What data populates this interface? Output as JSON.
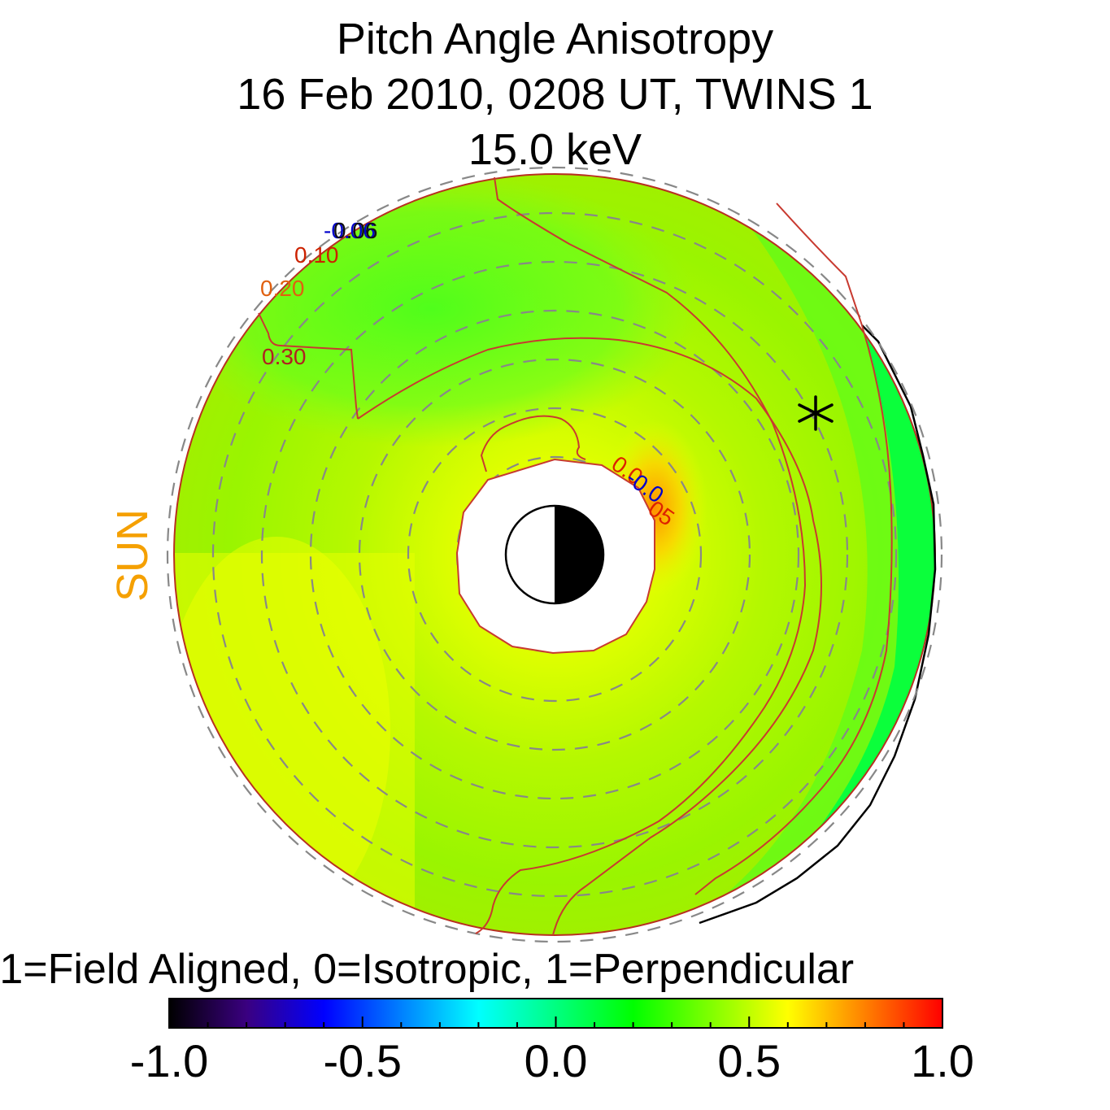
{
  "chart_data": {
    "type": "heatmap",
    "title": "Pitch Angle Anisotropy",
    "subtitle_date": "16 Feb 2010, 0208 UT,  TWINS 1",
    "subtitle_energy": "15.0 keV",
    "sun_label": "SUN",
    "colorbar": {
      "caption": "-1=Field Aligned, 0=Isotropic, 1=Perpendicular",
      "range": [
        -1.0,
        1.0
      ],
      "tick_labels": [
        "-1.0",
        "-0.5",
        "0.0",
        "0.5",
        "1.0"
      ],
      "tick_values": [
        -1.0,
        -0.5,
        0.0,
        0.5,
        1.0
      ],
      "colors": [
        "#000000",
        "#3a0080",
        "#0000ff",
        "#0080ff",
        "#00ffff",
        "#00ff80",
        "#00ff00",
        "#80ff00",
        "#ffff00",
        "#ff8000",
        "#ff0000"
      ]
    },
    "contour_labels": [
      {
        "text": "-0.06",
        "color": "#0000cc"
      },
      {
        "text": "0.06",
        "color": "#111111"
      },
      {
        "text": "0.10",
        "color": "#cc2200"
      },
      {
        "text": "0.20",
        "color": "#e06010"
      },
      {
        "text": "0.30",
        "color": "#b02020"
      },
      {
        "text": "0.0",
        "color": "#dd2200"
      },
      {
        "text": "-0.0",
        "color": "#0000cc"
      },
      {
        "text": "05",
        "color": "#dd2200"
      }
    ],
    "grid": true,
    "earth": "half-dark disk at center, night side right",
    "sun_direction": "left"
  }
}
